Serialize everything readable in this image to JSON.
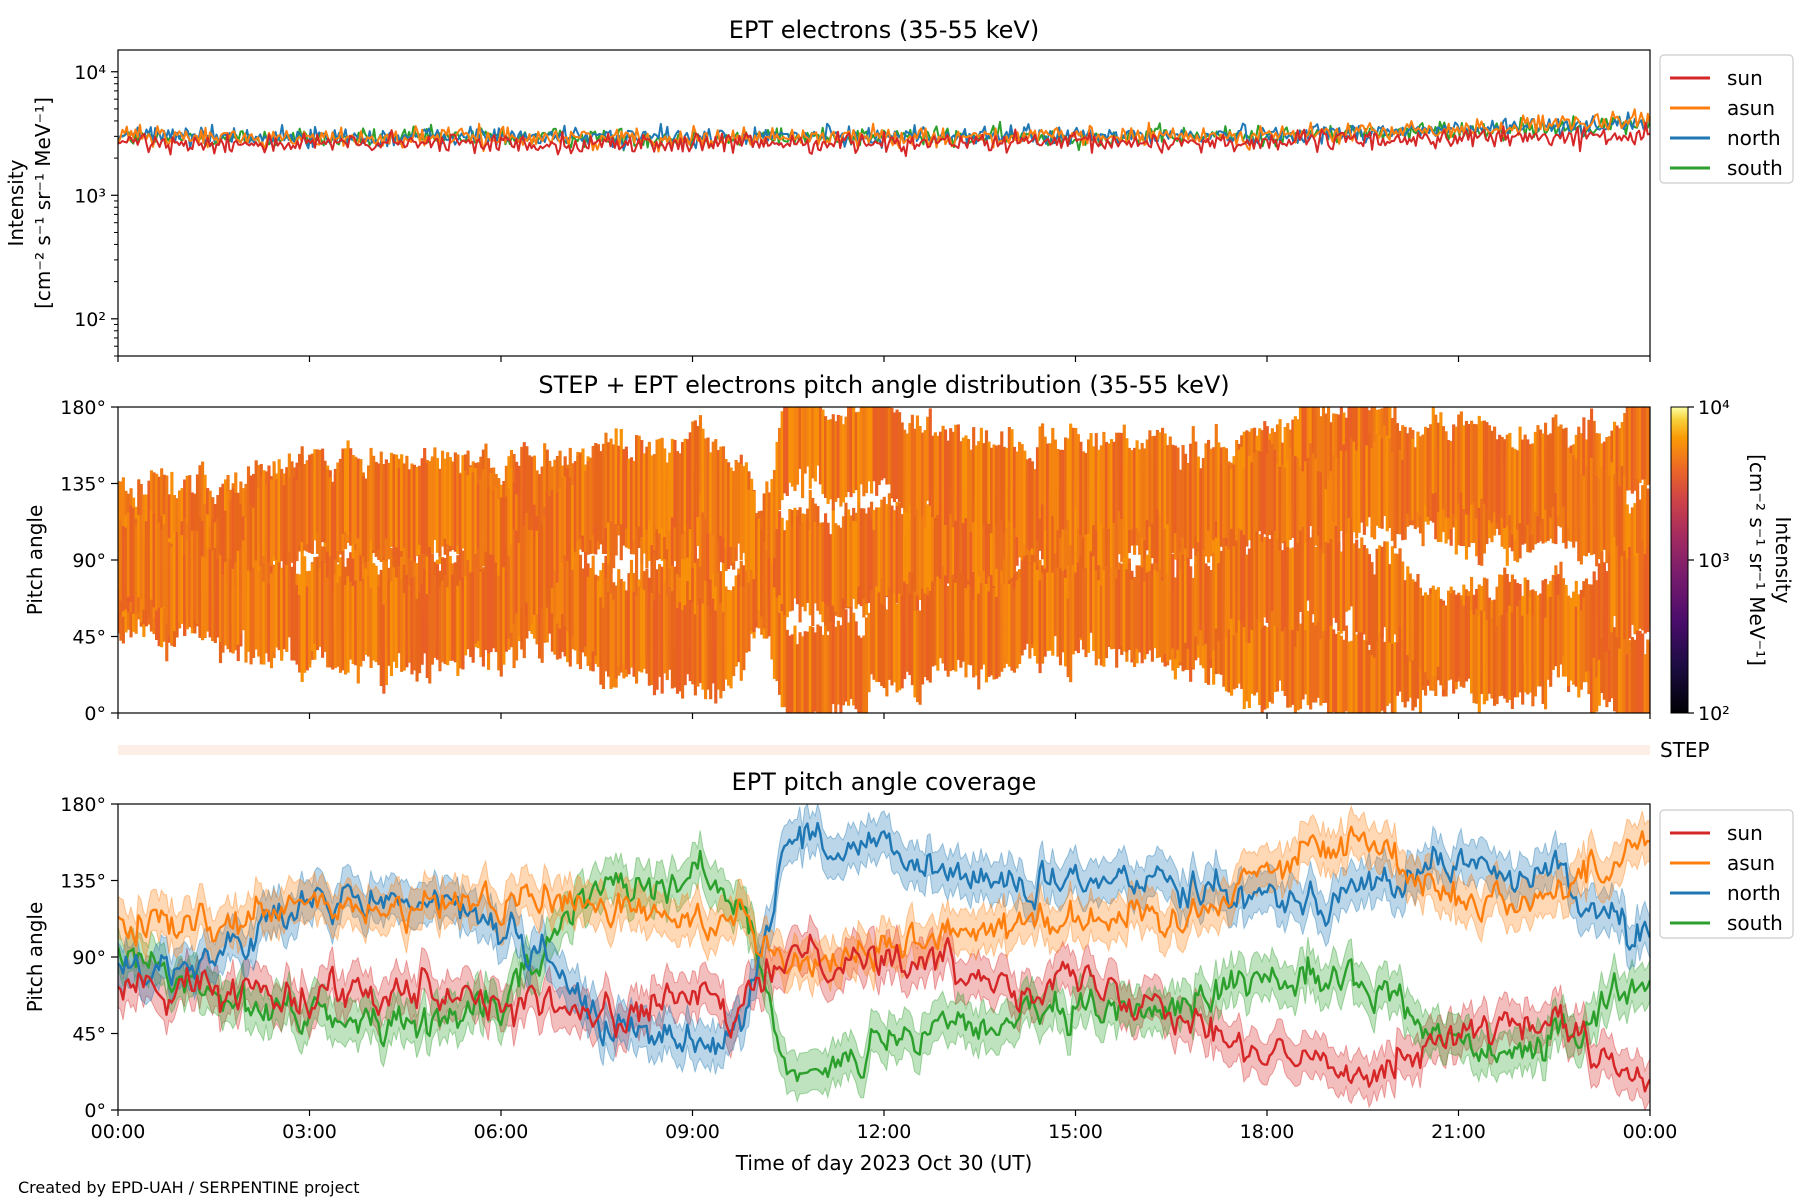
{
  "credit": "Created by EPD-UAH / SERPENTINE project",
  "xaxis": {
    "label": "Time of day 2023 Oct 30 (UT)",
    "ticks": [
      "00:00",
      "03:00",
      "06:00",
      "09:00",
      "12:00",
      "15:00",
      "18:00",
      "21:00",
      "00:00"
    ]
  },
  "colors": {
    "sun": "#d62728",
    "asun": "#ff7f0e",
    "north": "#1f77b4",
    "south": "#2ca02c"
  },
  "legend": [
    "sun",
    "asun",
    "north",
    "south"
  ],
  "panel1": {
    "title": "EPT electrons (35-55 keV)",
    "ylabel_line1": "Intensity",
    "ylabel_line2": "[cm⁻² s⁻¹ sr⁻¹ MeV⁻¹]",
    "yticks": [
      "10⁴",
      "10³",
      "10²"
    ]
  },
  "panel2": {
    "title": "STEP + EPT electrons pitch angle distribution (35-55 keV)",
    "ylabel": "Pitch angle",
    "yticks": [
      "180°",
      "135°",
      "90°",
      "45°",
      "0°"
    ],
    "colorbar_label_line1": "Intensity",
    "colorbar_label_line2": "[cm⁻² s⁻¹ sr⁻¹ MeV⁻¹]",
    "colorbar_ticks": [
      "10⁴",
      "10³",
      "10²"
    ]
  },
  "step_label": "STEP",
  "panel3": {
    "title": "EPT pitch angle coverage",
    "ylabel": "Pitch angle",
    "yticks": [
      "180°",
      "135°",
      "90°",
      "45°",
      "0°"
    ]
  },
  "chart_data": [
    {
      "type": "line",
      "title": "EPT electrons (35-55 keV)",
      "xlabel": "",
      "ylabel": "Intensity [cm⁻² s⁻¹ sr⁻¹ MeV⁻¹]",
      "yscale": "log",
      "ylim": [
        50,
        15000
      ],
      "x": [
        "00:00",
        "03:00",
        "06:00",
        "09:00",
        "12:00",
        "15:00",
        "18:00",
        "21:00",
        "24:00"
      ],
      "series": [
        {
          "name": "sun",
          "values": [
            2700,
            2600,
            2650,
            2600,
            2700,
            2650,
            2700,
            2900,
            3000
          ]
        },
        {
          "name": "asun",
          "values": [
            3000,
            2900,
            2950,
            2900,
            3000,
            2950,
            3050,
            3400,
            4000
          ]
        },
        {
          "name": "north",
          "values": [
            3100,
            2950,
            3000,
            2950,
            3050,
            3000,
            3100,
            3400,
            3900
          ]
        },
        {
          "name": "south",
          "values": [
            2950,
            2850,
            2950,
            2900,
            3000,
            2950,
            3050,
            3350,
            3800
          ]
        }
      ],
      "legend_position": "outside-right",
      "grid": false
    },
    {
      "type": "heatmap",
      "title": "STEP + EPT electrons pitch angle distribution (35-55 keV)",
      "xlabel": "",
      "ylabel": "Pitch angle",
      "ylim": [
        0,
        180
      ],
      "colorscale": "inferno",
      "color_range": [
        100,
        10000
      ],
      "color_scale_type": "log",
      "dominant_intensity": 3000,
      "grid": false
    },
    {
      "type": "line",
      "title": "EPT pitch angle coverage",
      "xlabel": "Time of day 2023 Oct 30 (UT)",
      "ylabel": "Pitch angle",
      "ylim": [
        0,
        180
      ],
      "x": [
        "00:00",
        "01:30",
        "03:00",
        "04:30",
        "06:00",
        "07:30",
        "09:00",
        "09:45",
        "10:30",
        "12:00",
        "13:30",
        "15:00",
        "16:30",
        "18:00",
        "19:30",
        "21:00",
        "22:30",
        "24:00"
      ],
      "series": [
        {
          "name": "sun",
          "values": [
            75,
            70,
            70,
            75,
            65,
            55,
            65,
            55,
            95,
            90,
            80,
            75,
            65,
            30,
            25,
            45,
            50,
            10
          ]
        },
        {
          "name": "asun",
          "values": [
            110,
            105,
            120,
            115,
            125,
            120,
            110,
            120,
            85,
            95,
            110,
            115,
            110,
            145,
            160,
            125,
            125,
            165
          ]
        },
        {
          "name": "north",
          "values": [
            80,
            90,
            120,
            125,
            110,
            55,
            40,
            50,
            160,
            150,
            135,
            130,
            140,
            125,
            130,
            145,
            135,
            100
          ]
        },
        {
          "name": "south",
          "values": [
            90,
            70,
            55,
            50,
            60,
            135,
            140,
            120,
            25,
            35,
            50,
            55,
            60,
            80,
            75,
            40,
            35,
            80
          ]
        }
      ],
      "band_halfwidth_deg": 12,
      "legend_position": "outside-right",
      "grid": false
    }
  ]
}
